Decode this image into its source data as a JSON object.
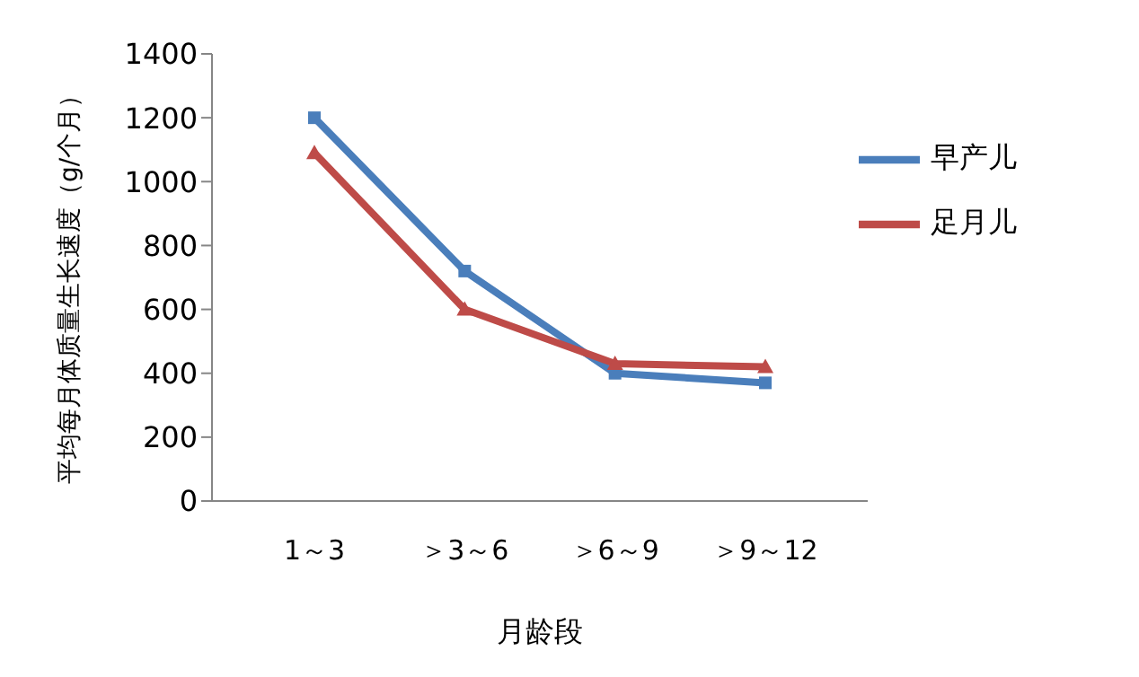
{
  "chart_data": {
    "type": "line",
    "xlabel": "月龄段",
    "ylabel": "平均每月体质量生长速度（g/个月）",
    "categories": [
      "1～3",
      "＞3～6",
      "＞6～9",
      "＞9～12"
    ],
    "series": [
      {
        "name": "早产儿",
        "color": "#4a7ebb",
        "marker": "square",
        "values": [
          1200,
          720,
          400,
          370
        ]
      },
      {
        "name": "足月儿",
        "color": "#be4b48",
        "marker": "triangle",
        "values": [
          1090,
          600,
          430,
          420
        ]
      }
    ],
    "ylim": [
      0,
      1400
    ],
    "yticks": [
      0,
      200,
      400,
      600,
      800,
      1000,
      1200,
      1400
    ],
    "grid": false,
    "legend": "top right"
  }
}
